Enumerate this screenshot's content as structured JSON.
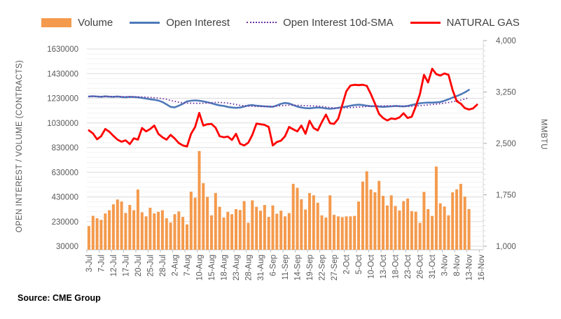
{
  "source_note": "Source: CME Group",
  "legend": {
    "marker_types": [
      "bar",
      "line",
      "dotted",
      "line"
    ]
  },
  "chart_data": {
    "type": "combo",
    "description": "Daily futures volume (bars), open interest (line), open-interest 10-day SMA (dotted) on left axis; natural gas price on right axis",
    "points_per_tick": 3,
    "total_slots": 97,
    "x_tick_labels": [
      "3-Jul",
      "7-Jul",
      "12-Jul",
      "17-Jul",
      "20-Jul",
      "25-Jul",
      "28-Jul",
      "2-Aug",
      "7-Aug",
      "10-Aug",
      "15-Aug",
      "18-Aug",
      "23-Aug",
      "28-Aug",
      "31-Aug",
      "6-Sep",
      "11-Sep",
      "14-Sep",
      "19-Sep",
      "22-Sep",
      "27-Sep",
      "2-Oct",
      "5-Oct",
      "10-Oct",
      "13-Oct",
      "18-Oct",
      "23-Oct",
      "26-Oct",
      "31-Oct",
      "3-Nov",
      "8-Nov",
      "13-Nov",
      "16-Nov"
    ],
    "left_axis": {
      "title": "OPEN INTEREST / VOLUME (CONTRACTS)",
      "min": 30000,
      "max": 1630000,
      "major_step": 200000,
      "minor_step": 40000,
      "tick_labels": [
        "30000",
        "230000",
        "430000",
        "630000",
        "830000",
        "1030000",
        "1230000",
        "1430000",
        "1630000"
      ]
    },
    "right_axis": {
      "title": "MMBTU",
      "min": 1000,
      "max": 4000,
      "major_step": 750,
      "minor_step": 75,
      "tick_labels": [
        "1,000",
        "1,750",
        "2,500",
        "3,250",
        "4,000"
      ]
    },
    "grid": {
      "minor_color": "#F2F2F2",
      "major_color": "#DBDBDB",
      "axis_line_color": "#BFBFBF"
    },
    "series": [
      {
        "name": "Volume",
        "type": "bar",
        "axis": "left",
        "color": "#F49A4C",
        "values": [
          194000,
          277000,
          257000,
          244000,
          296000,
          322000,
          370000,
          409000,
          393000,
          300000,
          365000,
          322000,
          490000,
          305000,
          272000,
          342000,
          296000,
          309000,
          322000,
          257000,
          222000,
          290000,
          312000,
          268000,
          207000,
          473000,
          424000,
          802000,
          542000,
          430000,
          281000,
          462000,
          350000,
          263000,
          309000,
          290000,
          331000,
          324000,
          396000,
          220000,
          402000,
          350000,
          318000,
          365000,
          268000,
          361000,
          294000,
          318000,
          272000,
          299000,
          536000,
          504000,
          411000,
          328000,
          462000,
          443000,
          383000,
          281000,
          263000,
          443000,
          285000,
          272000,
          266000,
          272000,
          272000,
          276000,
          393000,
          555000,
          638000,
          490000,
          467000,
          560000,
          439000,
          361000,
          443000,
          357000,
          320000,
          396000,
          417000,
          315000,
          310000,
          220000,
          471000,
          331000,
          276000,
          676000,
          378000,
          352000,
          281000,
          467000,
          491000,
          536000,
          433000,
          331000
        ]
      },
      {
        "name": "Open Interest",
        "type": "line",
        "axis": "left",
        "color": "#4E79B9",
        "values": [
          1245000,
          1247000,
          1244000,
          1242000,
          1246000,
          1243000,
          1242000,
          1245000,
          1240000,
          1238000,
          1242000,
          1240000,
          1238000,
          1233000,
          1228000,
          1222000,
          1218000,
          1212000,
          1200000,
          1180000,
          1160000,
          1157000,
          1170000,
          1185000,
          1205000,
          1210000,
          1213000,
          1210000,
          1205000,
          1198000,
          1190000,
          1180000,
          1172000,
          1168000,
          1160000,
          1155000,
          1152000,
          1155000,
          1163000,
          1172000,
          1175000,
          1170000,
          1167000,
          1165000,
          1163000,
          1161000,
          1172000,
          1185000,
          1192000,
          1188000,
          1175000,
          1163000,
          1155000,
          1150000,
          1149000,
          1152000,
          1155000,
          1153000,
          1148000,
          1145000,
          1148000,
          1153000,
          1158000,
          1163000,
          1170000,
          1175000,
          1178000,
          1175000,
          1170000,
          1166000,
          1166000,
          1163000,
          1160000,
          1163000,
          1165000,
          1168000,
          1166000,
          1164000,
          1168000,
          1175000,
          1183000,
          1190000,
          1193000,
          1195000,
          1195000,
          1197000,
          1200000,
          1210000,
          1222000,
          1235000,
          1248000,
          1262000,
          1278000,
          1298000
        ]
      },
      {
        "name": "Open Interest 10d-SMA",
        "type": "line-dotted",
        "axis": "left",
        "color": "#7030A0",
        "derived_from": "Open Interest",
        "sma_window_days": 10
      },
      {
        "name": "NATURAL GAS",
        "type": "line",
        "axis": "right",
        "color": "#FF0000",
        "values": [
          2690,
          2645,
          2560,
          2605,
          2710,
          2670,
          2610,
          2555,
          2525,
          2545,
          2490,
          2575,
          2555,
          2725,
          2675,
          2710,
          2760,
          2640,
          2590,
          2555,
          2625,
          2570,
          2505,
          2470,
          2455,
          2640,
          2740,
          2945,
          2760,
          2780,
          2785,
          2730,
          2605,
          2590,
          2600,
          2550,
          2640,
          2495,
          2470,
          2510,
          2625,
          2790,
          2780,
          2770,
          2740,
          2470,
          2520,
          2540,
          2605,
          2740,
          2705,
          2675,
          2760,
          2640,
          2830,
          2725,
          2690,
          2810,
          2920,
          2795,
          2785,
          2860,
          3060,
          3260,
          3345,
          3355,
          3350,
          3355,
          3340,
          3220,
          3080,
          2930,
          2870,
          2835,
          2865,
          2855,
          2880,
          2940,
          2870,
          2890,
          3040,
          3220,
          3500,
          3390,
          3590,
          3510,
          3490,
          3520,
          3500,
          3280,
          3115,
          3080,
          3015,
          2995,
          3010,
          3065
        ]
      }
    ]
  }
}
